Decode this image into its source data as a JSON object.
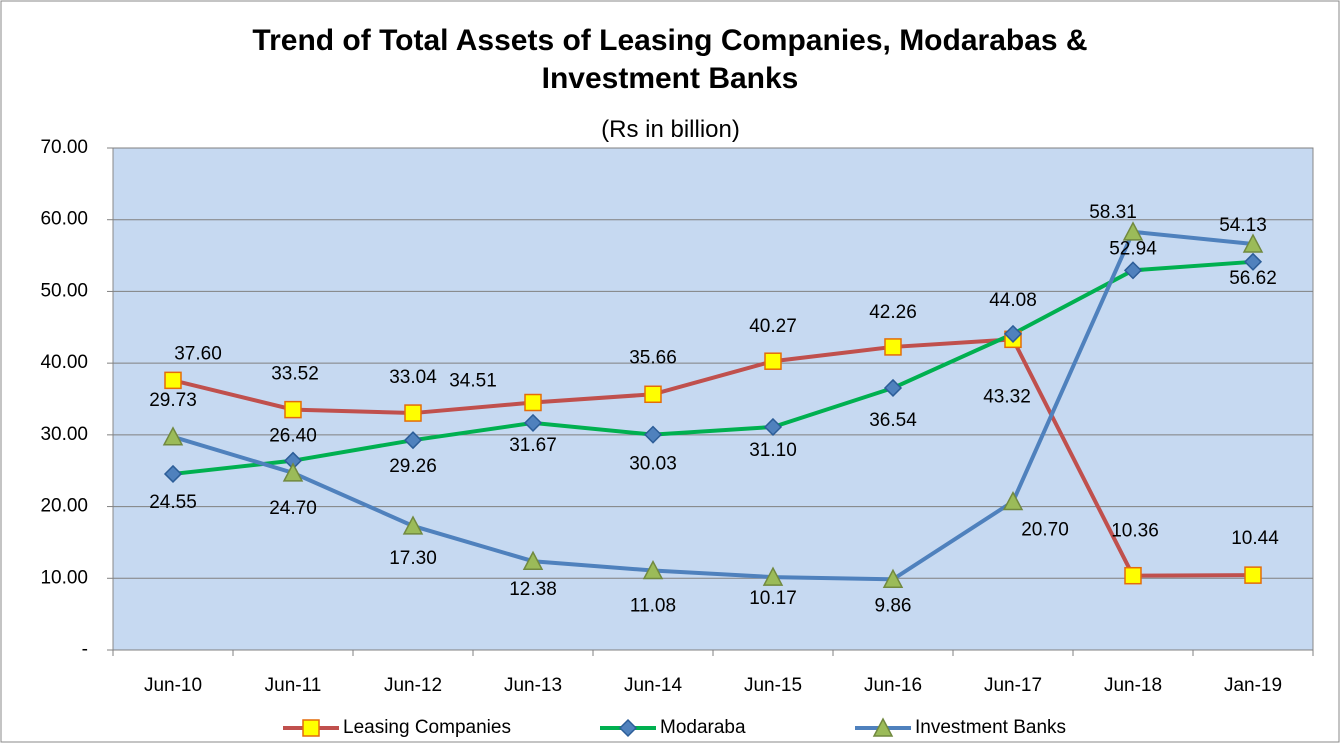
{
  "chart_data": {
    "type": "line",
    "title": "Trend of Total Assets of Leasing Companies, Modarabas & Investment Banks",
    "subtitle": "(Rs in billion)",
    "categories": [
      "Jun-10",
      "Jun-11",
      "Jun-12",
      "Jun-13",
      "Jun-14",
      "Jun-15",
      "Jun-16",
      "Jun-17",
      "Jun-18",
      "Jan-19"
    ],
    "series": [
      {
        "name": "Leasing Companies",
        "color": "#c0504d",
        "marker": "square",
        "marker_color": "#ffff00",
        "marker_edge": "#e46c0a",
        "values": [
          37.6,
          33.52,
          33.04,
          34.51,
          35.66,
          40.27,
          42.26,
          43.32,
          10.36,
          10.44
        ],
        "value_labels": [
          "37.60",
          "33.52",
          "33.04",
          "34.51",
          "35.66",
          "40.27",
          "42.26",
          "43.32",
          "10.36",
          "10.44"
        ]
      },
      {
        "name": "Modaraba",
        "color": "#00b050",
        "marker": "diamond",
        "marker_color": "#4f81bd",
        "marker_edge": "#2c5d98",
        "values": [
          24.55,
          26.4,
          29.26,
          31.67,
          30.03,
          31.1,
          36.54,
          44.08,
          52.94,
          54.13
        ],
        "value_labels": [
          "24.55",
          "26.40",
          "29.26",
          "31.67",
          "30.03",
          "31.10",
          "36.54",
          "44.08",
          "52.94",
          "54.13"
        ]
      },
      {
        "name": "Investment Banks",
        "color": "#4f81bd",
        "marker": "triangle",
        "marker_color": "#9bbb59",
        "marker_edge": "#71893f",
        "values": [
          29.73,
          24.7,
          17.3,
          12.38,
          11.08,
          10.17,
          9.86,
          20.7,
          58.31,
          56.62
        ],
        "value_labels": [
          "29.73",
          "24.70",
          "17.30",
          "12.38",
          "11.08",
          "10.17",
          "9.86",
          "20.70",
          "58.31",
          "56.62"
        ]
      }
    ],
    "ylim": [
      0,
      70
    ],
    "yticks": [
      {
        "value": 0,
        "label": "-"
      },
      {
        "value": 10,
        "label": "10.00"
      },
      {
        "value": 20,
        "label": "20.00"
      },
      {
        "value": 30,
        "label": "30.00"
      },
      {
        "value": 40,
        "label": "40.00"
      },
      {
        "value": 50,
        "label": "50.00"
      },
      {
        "value": 60,
        "label": "60.00"
      },
      {
        "value": 70,
        "label": "70.00"
      }
    ],
    "grid": true,
    "plot_background": "#c6d9f1",
    "legend": "bottom"
  }
}
